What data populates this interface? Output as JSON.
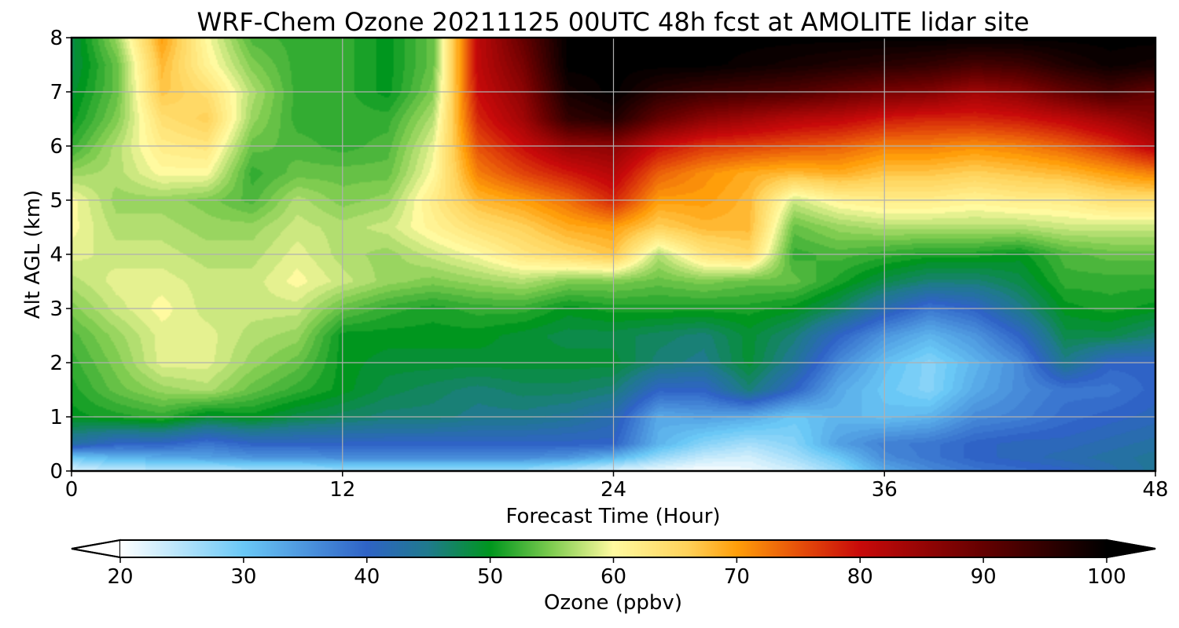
{
  "chart_data": {
    "type": "heatmap",
    "title": "WRF-Chem Ozone  20211125 00UTC 48h fcst at AMOLITE lidar site",
    "xlabel": "Forecast Time (Hour)",
    "ylabel": "Alt AGL (km)",
    "xlim": [
      0,
      48
    ],
    "ylim": [
      0,
      8
    ],
    "xticks": [
      0,
      12,
      24,
      36,
      48
    ],
    "yticks": [
      0,
      1,
      2,
      3,
      4,
      5,
      6,
      7,
      8
    ],
    "grid": true,
    "colorbar": {
      "label": "Ozone  (ppbv)",
      "range": [
        20,
        100
      ],
      "ticks": [
        20,
        30,
        40,
        50,
        60,
        70,
        80,
        90,
        100
      ],
      "extend": "both",
      "stops": [
        {
          "v": 20,
          "c": "#ffffff"
        },
        {
          "v": 30,
          "c": "#6ac8f6"
        },
        {
          "v": 40,
          "c": "#2f63c6"
        },
        {
          "v": 45,
          "c": "#1f7a8c"
        },
        {
          "v": 50,
          "c": "#00961e"
        },
        {
          "v": 55,
          "c": "#7fcc50"
        },
        {
          "v": 60,
          "c": "#fffaa0"
        },
        {
          "v": 66,
          "c": "#ffd25a"
        },
        {
          "v": 70,
          "c": "#ff9e0a"
        },
        {
          "v": 75,
          "c": "#e6500a"
        },
        {
          "v": 80,
          "c": "#c80a0a"
        },
        {
          "v": 90,
          "c": "#640000"
        },
        {
          "v": 100,
          "c": "#000000"
        }
      ]
    },
    "x_hours": [
      0,
      2,
      4,
      6,
      8,
      10,
      12,
      14,
      16,
      18,
      20,
      22,
      24,
      26,
      28,
      30,
      32,
      34,
      36,
      38,
      40,
      42,
      44,
      46,
      48
    ],
    "altitudes_km": [
      0,
      0.25,
      0.5,
      1,
      1.5,
      2,
      2.5,
      3,
      3.5,
      4,
      4.5,
      5,
      5.5,
      6,
      6.5,
      7,
      7.5,
      8
    ],
    "ozone_ppbv": [
      [
        22,
        24,
        24,
        24,
        25,
        25,
        26,
        26,
        26,
        26,
        26,
        24,
        22,
        21,
        20,
        21,
        23,
        27,
        33,
        36,
        38,
        39,
        40,
        42,
        44
      ],
      [
        30,
        32,
        33,
        34,
        35,
        35,
        36,
        36,
        36,
        36,
        36,
        35,
        32,
        27,
        24,
        23,
        26,
        30,
        36,
        38,
        40,
        41,
        42,
        43,
        44
      ],
      [
        43,
        40,
        40,
        38,
        40,
        40,
        40,
        40,
        40,
        40,
        40,
        40,
        40,
        32,
        28,
        26,
        28,
        34,
        37,
        38,
        40,
        41,
        41,
        42,
        43
      ],
      [
        50,
        51,
        52,
        49,
        50,
        48,
        47,
        46,
        46,
        45,
        45,
        44,
        42,
        33,
        34,
        33,
        30,
        32,
        31,
        32,
        36,
        37,
        39,
        40,
        41
      ],
      [
        51,
        54,
        56,
        57,
        54,
        52,
        50,
        48,
        47,
        46,
        47,
        47,
        46,
        40,
        40,
        46,
        40,
        33,
        30,
        28,
        33,
        36,
        38,
        38,
        40
      ],
      [
        52,
        55,
        59,
        59,
        56,
        54,
        50,
        49,
        49,
        49,
        49,
        49,
        49,
        46,
        45,
        49,
        44,
        36,
        31,
        28,
        32,
        36,
        45,
        40,
        40
      ],
      [
        53,
        56,
        59,
        59,
        57,
        56,
        50,
        50,
        50,
        50,
        49,
        48,
        48,
        47,
        46,
        49,
        46,
        40,
        35,
        32,
        35,
        40,
        48,
        48,
        46
      ],
      [
        55,
        58,
        60,
        58,
        58,
        58,
        54,
        52,
        51,
        52,
        52,
        50,
        51,
        51,
        51,
        51,
        50,
        47,
        42,
        38,
        40,
        45,
        50,
        51,
        50
      ],
      [
        57,
        59,
        59,
        58,
        58,
        60,
        58,
        56,
        55,
        56,
        57,
        55,
        55,
        54,
        55,
        54,
        54,
        51,
        48,
        46,
        46,
        48,
        52,
        52,
        52
      ],
      [
        59,
        58,
        58,
        57,
        57,
        59,
        57,
        56,
        58,
        60,
        63,
        65,
        67,
        57,
        63,
        65,
        52,
        53,
        52,
        51,
        51,
        50,
        53,
        54,
        54
      ],
      [
        60,
        57,
        57,
        56,
        56,
        58,
        57,
        58,
        61,
        64,
        66,
        69,
        70,
        66,
        68,
        68,
        54,
        56,
        57,
        57,
        57,
        57,
        58,
        58,
        58
      ],
      [
        60,
        56,
        56,
        55,
        53,
        57,
        55,
        56,
        62,
        68,
        70,
        73,
        78,
        70,
        70,
        68,
        58,
        61,
        62,
        62,
        61,
        62,
        62,
        64,
        64
      ],
      [
        56,
        57,
        60,
        60,
        52,
        54,
        54,
        54,
        60,
        72,
        76,
        79,
        82,
        74,
        71,
        69,
        68,
        69,
        67,
        67,
        66,
        67,
        68,
        70,
        72
      ],
      [
        52,
        57,
        62,
        63,
        54,
        53,
        52,
        53,
        59,
        75,
        80,
        85,
        86,
        80,
        77,
        76,
        75,
        74,
        72,
        72,
        71,
        72,
        74,
        77,
        82
      ],
      [
        50,
        55,
        64,
        66,
        56,
        52,
        52,
        52,
        57,
        78,
        84,
        95,
        97,
        90,
        86,
        84,
        82,
        81,
        79,
        78,
        78,
        79,
        81,
        84,
        87
      ],
      [
        49,
        54,
        67,
        64,
        57,
        52,
        52,
        50,
        55,
        80,
        86,
        98,
        100,
        96,
        94,
        93,
        92,
        90,
        88,
        87,
        84,
        86,
        90,
        93,
        90
      ],
      [
        48,
        54,
        68,
        61,
        55,
        52,
        52,
        50,
        54,
        81,
        88,
        100,
        100,
        100,
        100,
        99,
        98,
        97,
        96,
        95,
        93,
        94,
        97,
        99,
        98
      ],
      [
        48,
        56,
        70,
        60,
        53,
        52,
        52,
        50,
        54,
        81,
        90,
        100,
        100,
        100,
        100,
        100,
        100,
        100,
        100,
        100,
        100,
        100,
        100,
        100,
        100
      ]
    ]
  }
}
